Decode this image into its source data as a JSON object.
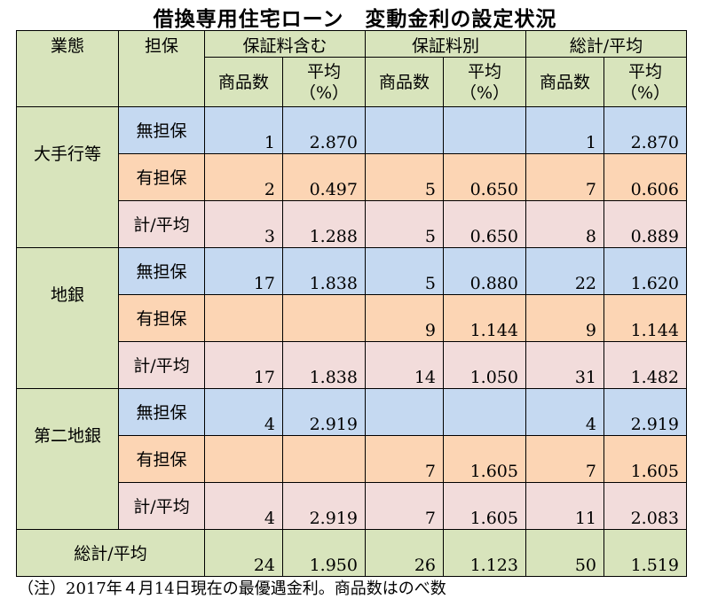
{
  "title": "借換専用住宅ローン　変動金利の設定状況",
  "headers": {
    "business": "業態",
    "collateral": "担保",
    "group1": "保証料含む",
    "group2": "保証料別",
    "group3": "総計/平均",
    "count": "商品数",
    "avg_line1": "平均",
    "avg_line2": "（%）"
  },
  "groups": [
    {
      "name": "大手行等",
      "rows": [
        {
          "label": "無担保",
          "v": [
            "1",
            "2.870",
            "",
            "",
            "1",
            "2.870"
          ]
        },
        {
          "label": "有担保",
          "v": [
            "2",
            "0.497",
            "5",
            "0.650",
            "7",
            "0.606"
          ]
        },
        {
          "label": "計/平均",
          "v": [
            "3",
            "1.288",
            "5",
            "0.650",
            "8",
            "0.889"
          ]
        }
      ]
    },
    {
      "name": "地銀",
      "rows": [
        {
          "label": "無担保",
          "v": [
            "17",
            "1.838",
            "5",
            "0.880",
            "22",
            "1.620"
          ]
        },
        {
          "label": "有担保",
          "v": [
            "",
            "",
            "9",
            "1.144",
            "9",
            "1.144"
          ]
        },
        {
          "label": "計/平均",
          "v": [
            "17",
            "1.838",
            "14",
            "1.050",
            "31",
            "1.482"
          ]
        }
      ]
    },
    {
      "name": "第二地銀",
      "rows": [
        {
          "label": "無担保",
          "v": [
            "4",
            "2.919",
            "",
            "",
            "4",
            "2.919"
          ]
        },
        {
          "label": "有担保",
          "v": [
            "",
            "",
            "7",
            "1.605",
            "7",
            "1.605"
          ]
        },
        {
          "label": "計/平均",
          "v": [
            "4",
            "2.919",
            "7",
            "1.605",
            "11",
            "2.083"
          ]
        }
      ]
    }
  ],
  "total": {
    "label": "総計/平均",
    "v": [
      "24",
      "1.950",
      "26",
      "1.123",
      "50",
      "1.519"
    ]
  },
  "note": "（注）2017年４月14日現在の最優遇金利。商品数はのべ数",
  "colors": {
    "header": "#d8e4bc",
    "unsecured": "#c5d9f1",
    "secured": "#fcd5b4",
    "subtotal": "#f2dcdb"
  }
}
